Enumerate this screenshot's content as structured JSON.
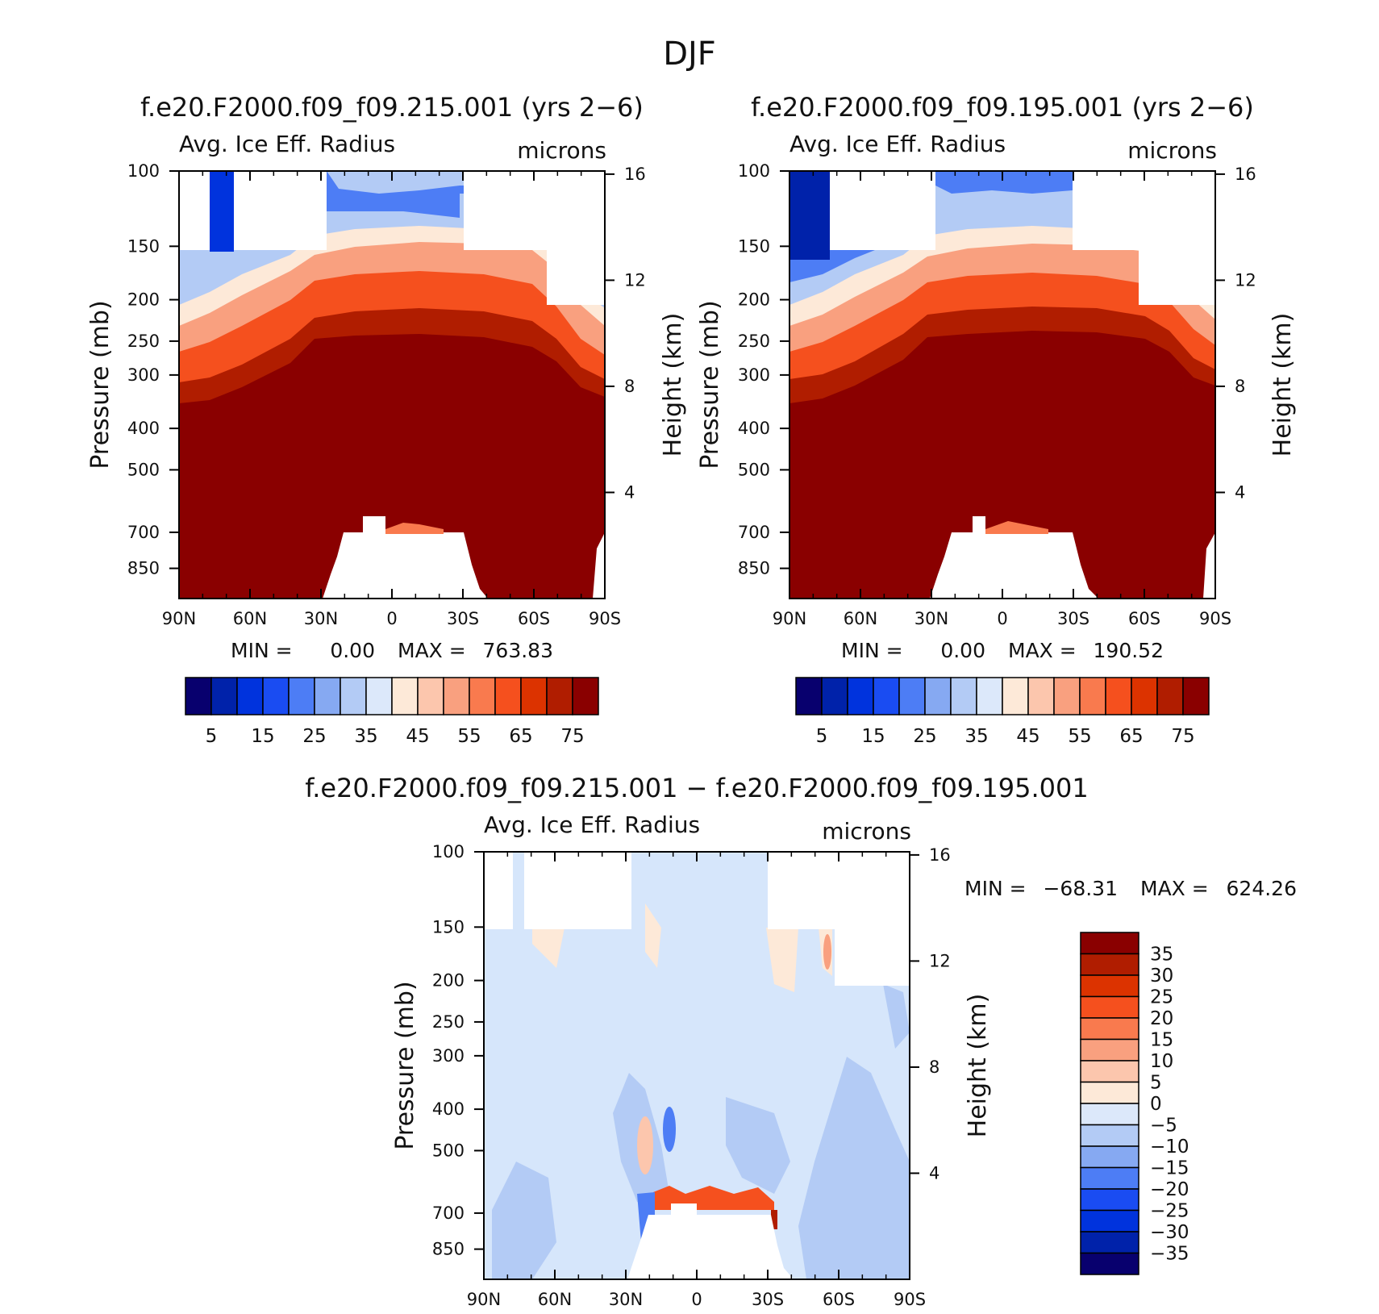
{
  "figure": {
    "title": "DJF"
  },
  "colors": {
    "abs_scale": [
      "#08006e",
      "#0022aa",
      "#0033dd",
      "#1a4cf2",
      "#4d7df5",
      "#86a9f2",
      "#b3cbf5",
      "#dce8fa",
      "#fde9d8",
      "#fcc6ad",
      "#f9a07f",
      "#f97a4e",
      "#f5501e",
      "#dc3300",
      "#b01d00",
      "#8a0000"
    ],
    "diff_scale": [
      "#08006e",
      "#0022aa",
      "#0033dd",
      "#1a4cf2",
      "#4d7df5",
      "#86a9f2",
      "#b3cbf5",
      "#dce8fa",
      "#fde9d8",
      "#fcc6ad",
      "#f9a07f",
      "#f97a4e",
      "#f5501e",
      "#dc3300",
      "#b01d00",
      "#8a0000"
    ],
    "fill_dark": "#8a0000",
    "fill_diff": "#d6e6fb"
  },
  "chart_data": [
    {
      "type": "heatmap",
      "title": "f.e20.F2000.f09_f09.215.001 (yrs 2−6)",
      "subtitle_left": "Avg. Ice Eff. Radius",
      "subtitle_right": "microns",
      "ylabel": "Pressure (mb)",
      "ylabel_right": "Height (km)",
      "x_ticks": [
        "90N",
        "60N",
        "30N",
        "0",
        "30S",
        "60S",
        "90S"
      ],
      "y_ticks": [
        "100",
        "150",
        "200",
        "250",
        "300",
        "400",
        "500",
        "700",
        "850"
      ],
      "y_ticks_right": [
        "16",
        "12",
        "8",
        "4"
      ],
      "stats": {
        "min_label": "MIN =",
        "min": "0.00",
        "max_label": "MAX =",
        "max": "763.83"
      },
      "colorbar_labels": [
        "5",
        "15",
        "25",
        "35",
        "45",
        "55",
        "65",
        "75"
      ],
      "contour_levels": [
        0,
        5,
        10,
        15,
        20,
        25,
        30,
        35,
        40,
        45,
        50,
        55,
        60,
        65,
        70,
        75
      ],
      "ylim": [
        100,
        1000
      ],
      "xlim": [
        "90N",
        "90S"
      ]
    },
    {
      "type": "heatmap",
      "title": "f.e20.F2000.f09_f09.195.001 (yrs 2−6)",
      "subtitle_left": "Avg. Ice Eff. Radius",
      "subtitle_right": "microns",
      "ylabel": "Pressure (mb)",
      "ylabel_right": "Height (km)",
      "x_ticks": [
        "90N",
        "60N",
        "30N",
        "0",
        "30S",
        "60S",
        "90S"
      ],
      "y_ticks": [
        "100",
        "150",
        "200",
        "250",
        "300",
        "400",
        "500",
        "700",
        "850"
      ],
      "y_ticks_right": [
        "16",
        "12",
        "8",
        "4"
      ],
      "stats": {
        "min_label": "MIN =",
        "min": "0.00",
        "max_label": "MAX =",
        "max": "190.52"
      },
      "colorbar_labels": [
        "5",
        "15",
        "25",
        "35",
        "45",
        "55",
        "65",
        "75"
      ],
      "contour_levels": [
        0,
        5,
        10,
        15,
        20,
        25,
        30,
        35,
        40,
        45,
        50,
        55,
        60,
        65,
        70,
        75
      ],
      "ylim": [
        100,
        1000
      ],
      "xlim": [
        "90N",
        "90S"
      ]
    },
    {
      "type": "heatmap",
      "title": "f.e20.F2000.f09_f09.215.001 − f.e20.F2000.f09_f09.195.001",
      "subtitle_left": "Avg. Ice Eff. Radius",
      "subtitle_right": "microns",
      "ylabel": "Pressure (mb)",
      "ylabel_right": "Height (km)",
      "x_ticks": [
        "90N",
        "60N",
        "30N",
        "0",
        "30S",
        "60S",
        "90S"
      ],
      "y_ticks": [
        "100",
        "150",
        "200",
        "250",
        "300",
        "400",
        "500",
        "700",
        "850"
      ],
      "y_ticks_right": [
        "16",
        "12",
        "8",
        "4"
      ],
      "stats": {
        "min_label": "MIN =",
        "min": "−68.31",
        "max_label": "MAX =",
        "max": "624.26"
      },
      "colorbar_labels": [
        "35",
        "30",
        "25",
        "20",
        "15",
        "10",
        "5",
        "0",
        "−5",
        "−10",
        "−15",
        "−20",
        "−25",
        "−30",
        "−35"
      ],
      "contour_levels": [
        -35,
        -30,
        -25,
        -20,
        -15,
        -10,
        -5,
        0,
        5,
        10,
        15,
        20,
        25,
        30,
        35
      ],
      "ylim": [
        100,
        1000
      ],
      "xlim": [
        "90N",
        "90S"
      ]
    }
  ]
}
